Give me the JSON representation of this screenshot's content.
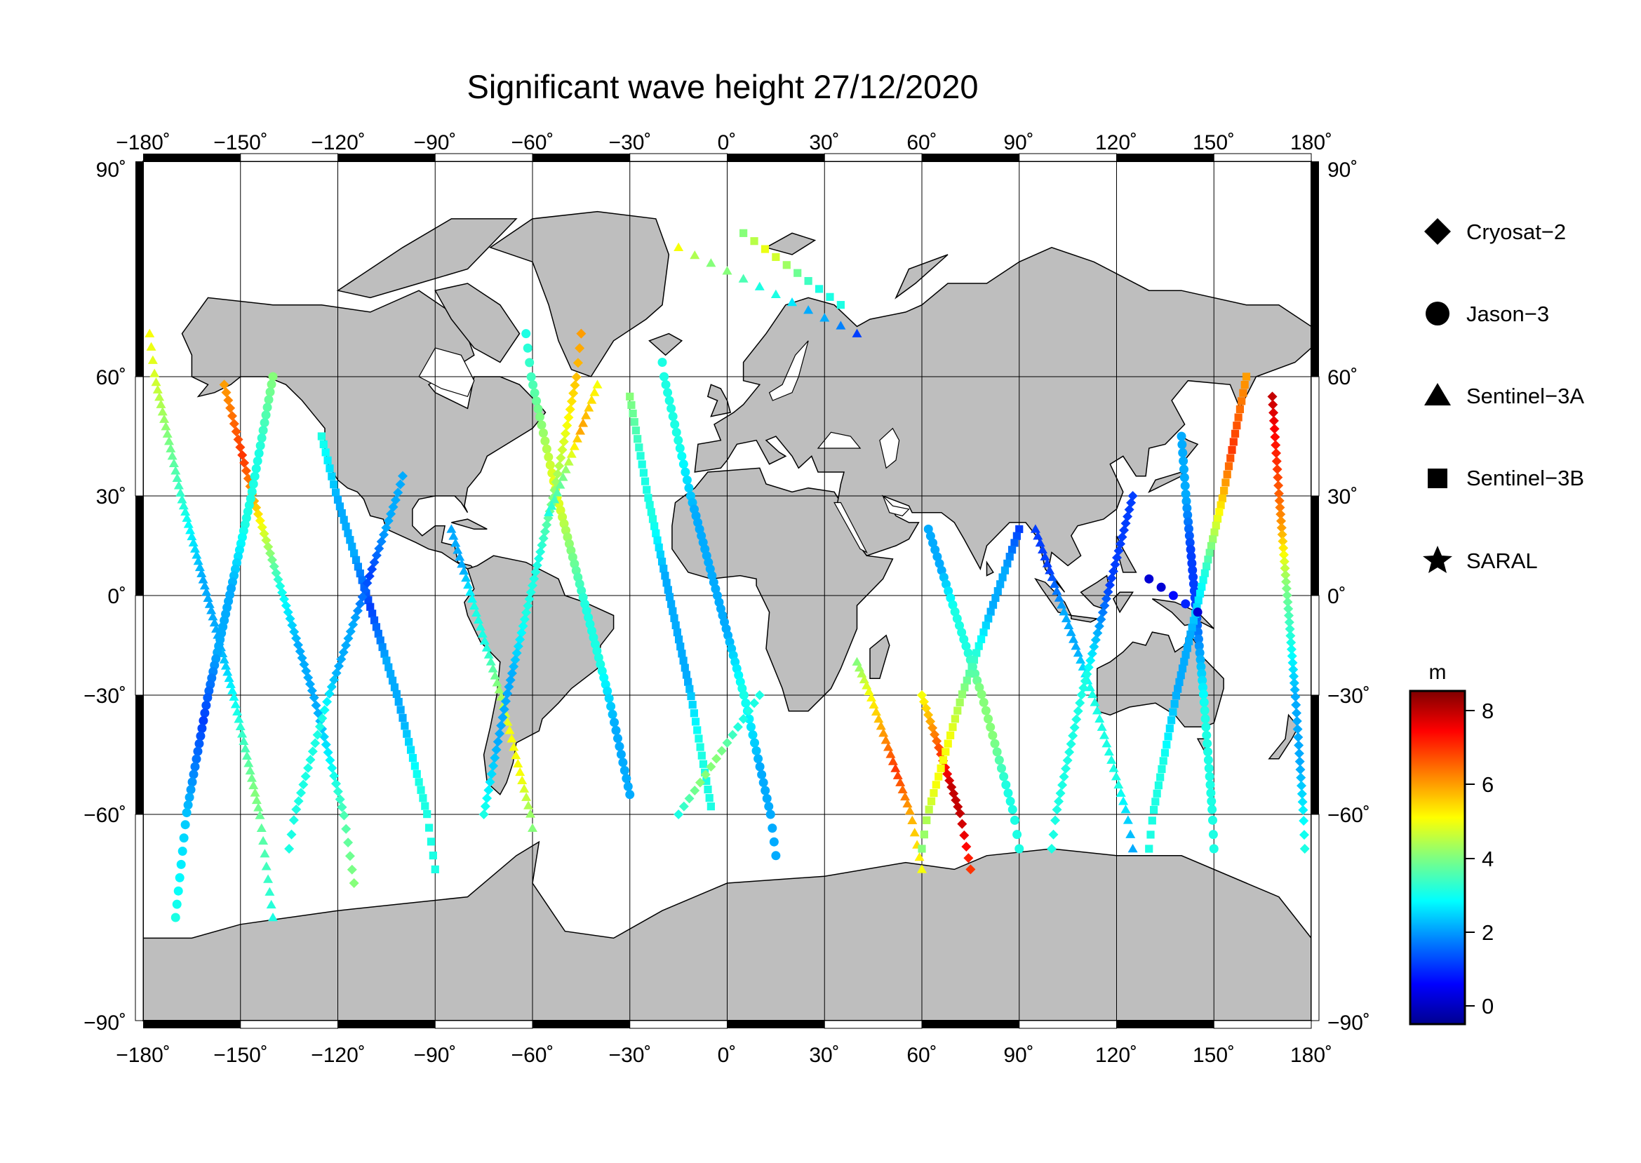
{
  "title": "Significant wave height 27/12/2020",
  "map": {
    "lon_ticks": [
      "−180˚",
      "−150˚",
      "−120˚",
      "−90˚",
      "−60˚",
      "−30˚",
      "0˚",
      "30˚",
      "60˚",
      "90˚",
      "120˚",
      "150˚",
      "180˚"
    ],
    "lat_ticks_left": [
      "90˚",
      "60˚",
      "30˚",
      "0˚",
      "−30˚",
      "−60˚",
      "−90˚"
    ],
    "lat_ticks_right": [
      "90˚",
      "60˚",
      "30˚",
      "0˚",
      "−30˚",
      "−60˚",
      "−90˚"
    ],
    "lon_range": [
      -180,
      180
    ],
    "lat_range": [
      -90,
      90
    ],
    "grid": true,
    "land_color": "#bebebe",
    "ocean_color": "#ffffff"
  },
  "legend": {
    "items": [
      {
        "label": "Cryosat−2",
        "symbol": "diamond"
      },
      {
        "label": "Jason−3",
        "symbol": "circle"
      },
      {
        "label": "Sentinel−3A",
        "symbol": "triangle"
      },
      {
        "label": "Sentinel−3B",
        "symbol": "square"
      },
      {
        "label": "SARAL",
        "symbol": "star"
      }
    ]
  },
  "colorbar": {
    "unit": "m",
    "ticks": [
      "8",
      "6",
      "4",
      "2",
      "0"
    ],
    "range": [
      -0.7,
      8.6
    ],
    "colors": [
      "#00008f",
      "#0000ff",
      "#0080ff",
      "#00ffff",
      "#80ff80",
      "#ffff00",
      "#ff8000",
      "#ff0000",
      "#800000"
    ]
  },
  "chart_data": {
    "type": "scatter",
    "title": "Significant wave height 27/12/2020",
    "value_unit": "m",
    "x_range": [
      -180,
      180
    ],
    "y_range": [
      -90,
      90
    ],
    "tracks": [
      {
        "satellite": "Sentinel−3A",
        "from": [
          -178,
          66
        ],
        "to": [
          -140,
          -75
        ],
        "hs": [
          5,
          4,
          3,
          2,
          2,
          3,
          4,
          3
        ]
      },
      {
        "satellite": "Cryosat−2",
        "from": [
          -155,
          58
        ],
        "to": [
          -115,
          -70
        ],
        "hs": [
          6,
          7,
          5,
          3,
          2,
          2,
          3,
          4
        ]
      },
      {
        "satellite": "Jason−3",
        "from": [
          -140,
          60
        ],
        "to": [
          -170,
          -75
        ],
        "hs": [
          4,
          3,
          3,
          2,
          2,
          1,
          2,
          3
        ]
      },
      {
        "satellite": "Sentinel−3B",
        "from": [
          -125,
          45
        ],
        "to": [
          -90,
          -68
        ],
        "hs": [
          3,
          2,
          2,
          1,
          2,
          2,
          3,
          3
        ]
      },
      {
        "satellite": "Cryosat−2",
        "from": [
          -100,
          35
        ],
        "to": [
          -135,
          -65
        ],
        "hs": [
          2,
          2,
          1,
          2,
          2,
          3,
          3,
          3
        ]
      },
      {
        "satellite": "Sentinel−3A",
        "from": [
          -85,
          20
        ],
        "to": [
          -60,
          -62
        ],
        "hs": [
          2,
          2,
          3,
          3,
          4,
          5,
          5,
          4
        ]
      },
      {
        "satellite": "Jason−3",
        "from": [
          -62,
          66
        ],
        "to": [
          -30,
          -55
        ],
        "hs": [
          3,
          4,
          5,
          4,
          3,
          3,
          2,
          2
        ]
      },
      {
        "satellite": "Cryosat−2",
        "from": [
          -45,
          66
        ],
        "to": [
          -75,
          -60
        ],
        "hs": [
          6,
          5,
          4,
          3,
          3,
          2,
          2,
          3
        ]
      },
      {
        "satellite": "Sentinel−3B",
        "from": [
          -30,
          55
        ],
        "to": [
          -5,
          -58
        ],
        "hs": [
          4,
          3,
          3,
          2,
          2,
          2,
          3,
          3
        ]
      },
      {
        "satellite": "Sentinel−3A",
        "from": [
          -15,
          78
        ],
        "to": [
          40,
          66
        ],
        "hs": [
          5,
          4,
          4,
          3,
          3,
          2,
          2,
          1
        ]
      },
      {
        "satellite": "Jason−3",
        "from": [
          -20,
          62
        ],
        "to": [
          15,
          -66
        ],
        "hs": [
          3,
          3,
          2,
          2,
          2,
          3,
          2,
          2
        ]
      },
      {
        "satellite": "Cryosat−2",
        "from": [
          10,
          -30
        ],
        "to": [
          -15,
          -60
        ],
        "hs": [
          3,
          3,
          4,
          4,
          3
        ]
      },
      {
        "satellite": "Sentinel−3B",
        "from": [
          5,
          80
        ],
        "to": [
          35,
          70
        ],
        "hs": [
          4,
          5,
          4,
          3,
          3
        ]
      },
      {
        "satellite": "Sentinel−3A",
        "from": [
          40,
          -20
        ],
        "to": [
          60,
          -68
        ],
        "hs": [
          4,
          5,
          6,
          7,
          6,
          5
        ]
      },
      {
        "satellite": "Cryosat−2",
        "from": [
          60,
          -30
        ],
        "to": [
          75,
          -68
        ],
        "hs": [
          5,
          6,
          7,
          8,
          8,
          7
        ]
      },
      {
        "satellite": "Jason−3",
        "from": [
          62,
          20
        ],
        "to": [
          90,
          -65
        ],
        "hs": [
          2,
          2,
          3,
          3,
          4,
          4,
          3,
          3
        ]
      },
      {
        "satellite": "Sentinel−3B",
        "from": [
          90,
          20
        ],
        "to": [
          60,
          -65
        ],
        "hs": [
          1,
          2,
          2,
          3,
          4,
          5,
          5,
          4
        ]
      },
      {
        "satellite": "Sentinel−3A",
        "from": [
          95,
          20
        ],
        "to": [
          125,
          -65
        ],
        "hs": [
          1,
          1,
          2,
          2,
          3,
          3,
          3,
          2
        ]
      },
      {
        "satellite": "Cryosat−2",
        "from": [
          125,
          30
        ],
        "to": [
          100,
          -65
        ],
        "hs": [
          1,
          1,
          1,
          2,
          3,
          3,
          3,
          3
        ]
      },
      {
        "satellite": "Jason−3",
        "from": [
          140,
          45
        ],
        "to": [
          150,
          -65
        ],
        "hs": [
          2,
          2,
          1,
          1,
          2,
          3,
          3,
          3
        ]
      },
      {
        "satellite": "Sentinel−3B",
        "from": [
          160,
          60
        ],
        "to": [
          130,
          -65
        ],
        "hs": [
          6,
          7,
          5,
          3,
          2,
          2,
          3,
          3
        ]
      },
      {
        "satellite": "Cryosat−2",
        "from": [
          168,
          55
        ],
        "to": [
          178,
          -65
        ],
        "hs": [
          8,
          7,
          6,
          4,
          3,
          2,
          2,
          3
        ]
      },
      {
        "satellite": "Sentinel−3A",
        "from": [
          -40,
          58
        ],
        "to": [
          -55,
          25
        ],
        "hs": [
          5,
          6,
          4,
          3
        ]
      },
      {
        "satellite": "Jason−3",
        "from": [
          130,
          5
        ],
        "to": [
          145,
          -5
        ],
        "hs": [
          0,
          0,
          1,
          0
        ]
      }
    ]
  }
}
